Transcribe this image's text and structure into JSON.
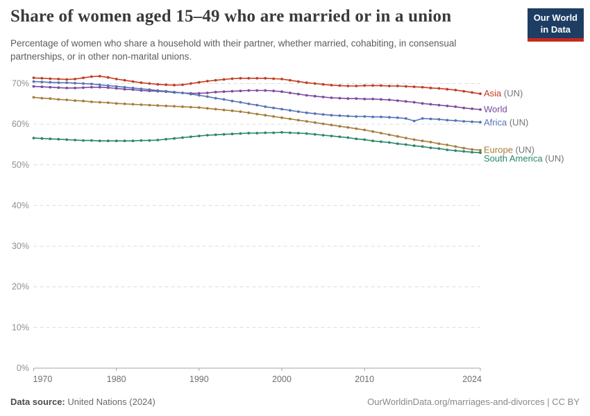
{
  "header": {
    "title": "Share of women aged 15–49 who are married or in a union",
    "subtitle": "Percentage of women who share a household with their partner, whether married, cohabiting, in consensual partnerships, or in other non-marital unions.",
    "logo": {
      "line1": "Our World",
      "line2": "in Data",
      "bg_color": "#1D3D63",
      "accent_color": "#C5281C"
    }
  },
  "footer": {
    "source_label": "Data source:",
    "source_value": "United Nations (2024)",
    "credit": "OurWorldinData.org/marriages-and-divorces | CC BY"
  },
  "chart_data": {
    "type": "line",
    "title": "Share of women aged 15–49 who are married or in a union",
    "unit": "%",
    "xlim": [
      1970,
      2024
    ],
    "ylim": [
      0,
      72.5
    ],
    "grid": "horizontal-dashed",
    "legend_position": "right-end-labels",
    "x_ticks": [
      1970,
      1980,
      1990,
      2000,
      2010,
      2024
    ],
    "y_ticks": [
      0,
      10,
      20,
      30,
      40,
      50,
      60,
      70
    ],
    "x": [
      1970,
      1971,
      1972,
      1973,
      1974,
      1975,
      1976,
      1977,
      1978,
      1979,
      1980,
      1981,
      1982,
      1983,
      1984,
      1985,
      1986,
      1987,
      1988,
      1989,
      1990,
      1991,
      1992,
      1993,
      1994,
      1995,
      1996,
      1997,
      1998,
      1999,
      2000,
      2001,
      2002,
      2003,
      2004,
      2005,
      2006,
      2007,
      2008,
      2009,
      2010,
      2011,
      2012,
      2013,
      2014,
      2015,
      2016,
      2017,
      2018,
      2019,
      2020,
      2021,
      2022,
      2023,
      2024
    ],
    "series": [
      {
        "id": "asia",
        "name": "Asia",
        "suffix": "(UN)",
        "color": "#C43C20",
        "label_dy": 0,
        "values": [
          71.4,
          71.3,
          71.2,
          71.1,
          71.0,
          71.1,
          71.4,
          71.7,
          71.8,
          71.5,
          71.1,
          70.8,
          70.5,
          70.2,
          70.0,
          69.8,
          69.7,
          69.6,
          69.7,
          70.0,
          70.3,
          70.6,
          70.8,
          71.0,
          71.2,
          71.3,
          71.3,
          71.3,
          71.3,
          71.2,
          71.1,
          70.8,
          70.5,
          70.2,
          70.0,
          69.8,
          69.6,
          69.5,
          69.4,
          69.4,
          69.5,
          69.5,
          69.5,
          69.4,
          69.4,
          69.3,
          69.2,
          69.1,
          68.9,
          68.8,
          68.6,
          68.4,
          68.1,
          67.8,
          67.5
        ]
      },
      {
        "id": "world",
        "name": "World",
        "suffix": "",
        "color": "#7A4AA0",
        "label_dy": 0,
        "values": [
          69.3,
          69.2,
          69.1,
          69.0,
          68.9,
          68.9,
          69.0,
          69.1,
          69.1,
          69.0,
          68.8,
          68.6,
          68.5,
          68.3,
          68.2,
          68.1,
          68.0,
          67.8,
          67.7,
          67.6,
          67.6,
          67.7,
          67.9,
          68.0,
          68.1,
          68.2,
          68.3,
          68.3,
          68.3,
          68.2,
          68.0,
          67.7,
          67.4,
          67.1,
          66.9,
          66.7,
          66.5,
          66.4,
          66.3,
          66.3,
          66.2,
          66.2,
          66.1,
          66.0,
          65.8,
          65.6,
          65.4,
          65.1,
          64.9,
          64.7,
          64.5,
          64.3,
          64.0,
          63.8,
          63.6
        ]
      },
      {
        "id": "africa",
        "name": "Africa",
        "suffix": "(UN)",
        "color": "#5573B4",
        "label_dy": 1,
        "values": [
          70.5,
          70.4,
          70.3,
          70.2,
          70.2,
          70.1,
          70.0,
          69.9,
          69.7,
          69.5,
          69.3,
          69.1,
          68.9,
          68.7,
          68.5,
          68.3,
          68.1,
          67.9,
          67.7,
          67.4,
          67.1,
          66.8,
          66.4,
          66.1,
          65.7,
          65.4,
          65.0,
          64.7,
          64.3,
          64.0,
          63.7,
          63.4,
          63.1,
          62.8,
          62.6,
          62.4,
          62.2,
          62.1,
          62.0,
          61.9,
          61.9,
          61.8,
          61.8,
          61.7,
          61.6,
          61.4,
          60.8,
          61.4,
          61.3,
          61.2,
          61.0,
          60.9,
          60.7,
          60.6,
          60.5
        ]
      },
      {
        "id": "europe",
        "name": "Europe",
        "suffix": "(UN)",
        "color": "#A67C3A",
        "label_dy": 0,
        "values": [
          66.6,
          66.4,
          66.3,
          66.1,
          66.0,
          65.8,
          65.7,
          65.5,
          65.4,
          65.3,
          65.1,
          65.0,
          64.9,
          64.8,
          64.7,
          64.6,
          64.5,
          64.4,
          64.3,
          64.2,
          64.1,
          63.9,
          63.7,
          63.5,
          63.3,
          63.1,
          62.8,
          62.5,
          62.2,
          61.9,
          61.6,
          61.3,
          61.0,
          60.7,
          60.4,
          60.1,
          59.8,
          59.5,
          59.2,
          58.9,
          58.6,
          58.2,
          57.8,
          57.4,
          57.0,
          56.6,
          56.2,
          55.9,
          55.6,
          55.2,
          54.9,
          54.5,
          54.1,
          53.8,
          53.6
        ]
      },
      {
        "id": "south-america",
        "name": "South America",
        "suffix": "(UN)",
        "color": "#2A866A",
        "label_dy": 9,
        "values": [
          56.6,
          56.5,
          56.4,
          56.3,
          56.2,
          56.1,
          56.0,
          56.0,
          55.9,
          55.9,
          55.9,
          55.9,
          55.9,
          56.0,
          56.0,
          56.1,
          56.3,
          56.5,
          56.7,
          56.9,
          57.1,
          57.3,
          57.4,
          57.5,
          57.6,
          57.7,
          57.8,
          57.8,
          57.9,
          57.9,
          58.0,
          57.9,
          57.8,
          57.7,
          57.5,
          57.3,
          57.1,
          56.9,
          56.7,
          56.4,
          56.2,
          55.9,
          55.7,
          55.5,
          55.2,
          55.0,
          54.7,
          54.5,
          54.2,
          54.0,
          53.7,
          53.5,
          53.3,
          53.1,
          53.0
        ]
      }
    ]
  }
}
